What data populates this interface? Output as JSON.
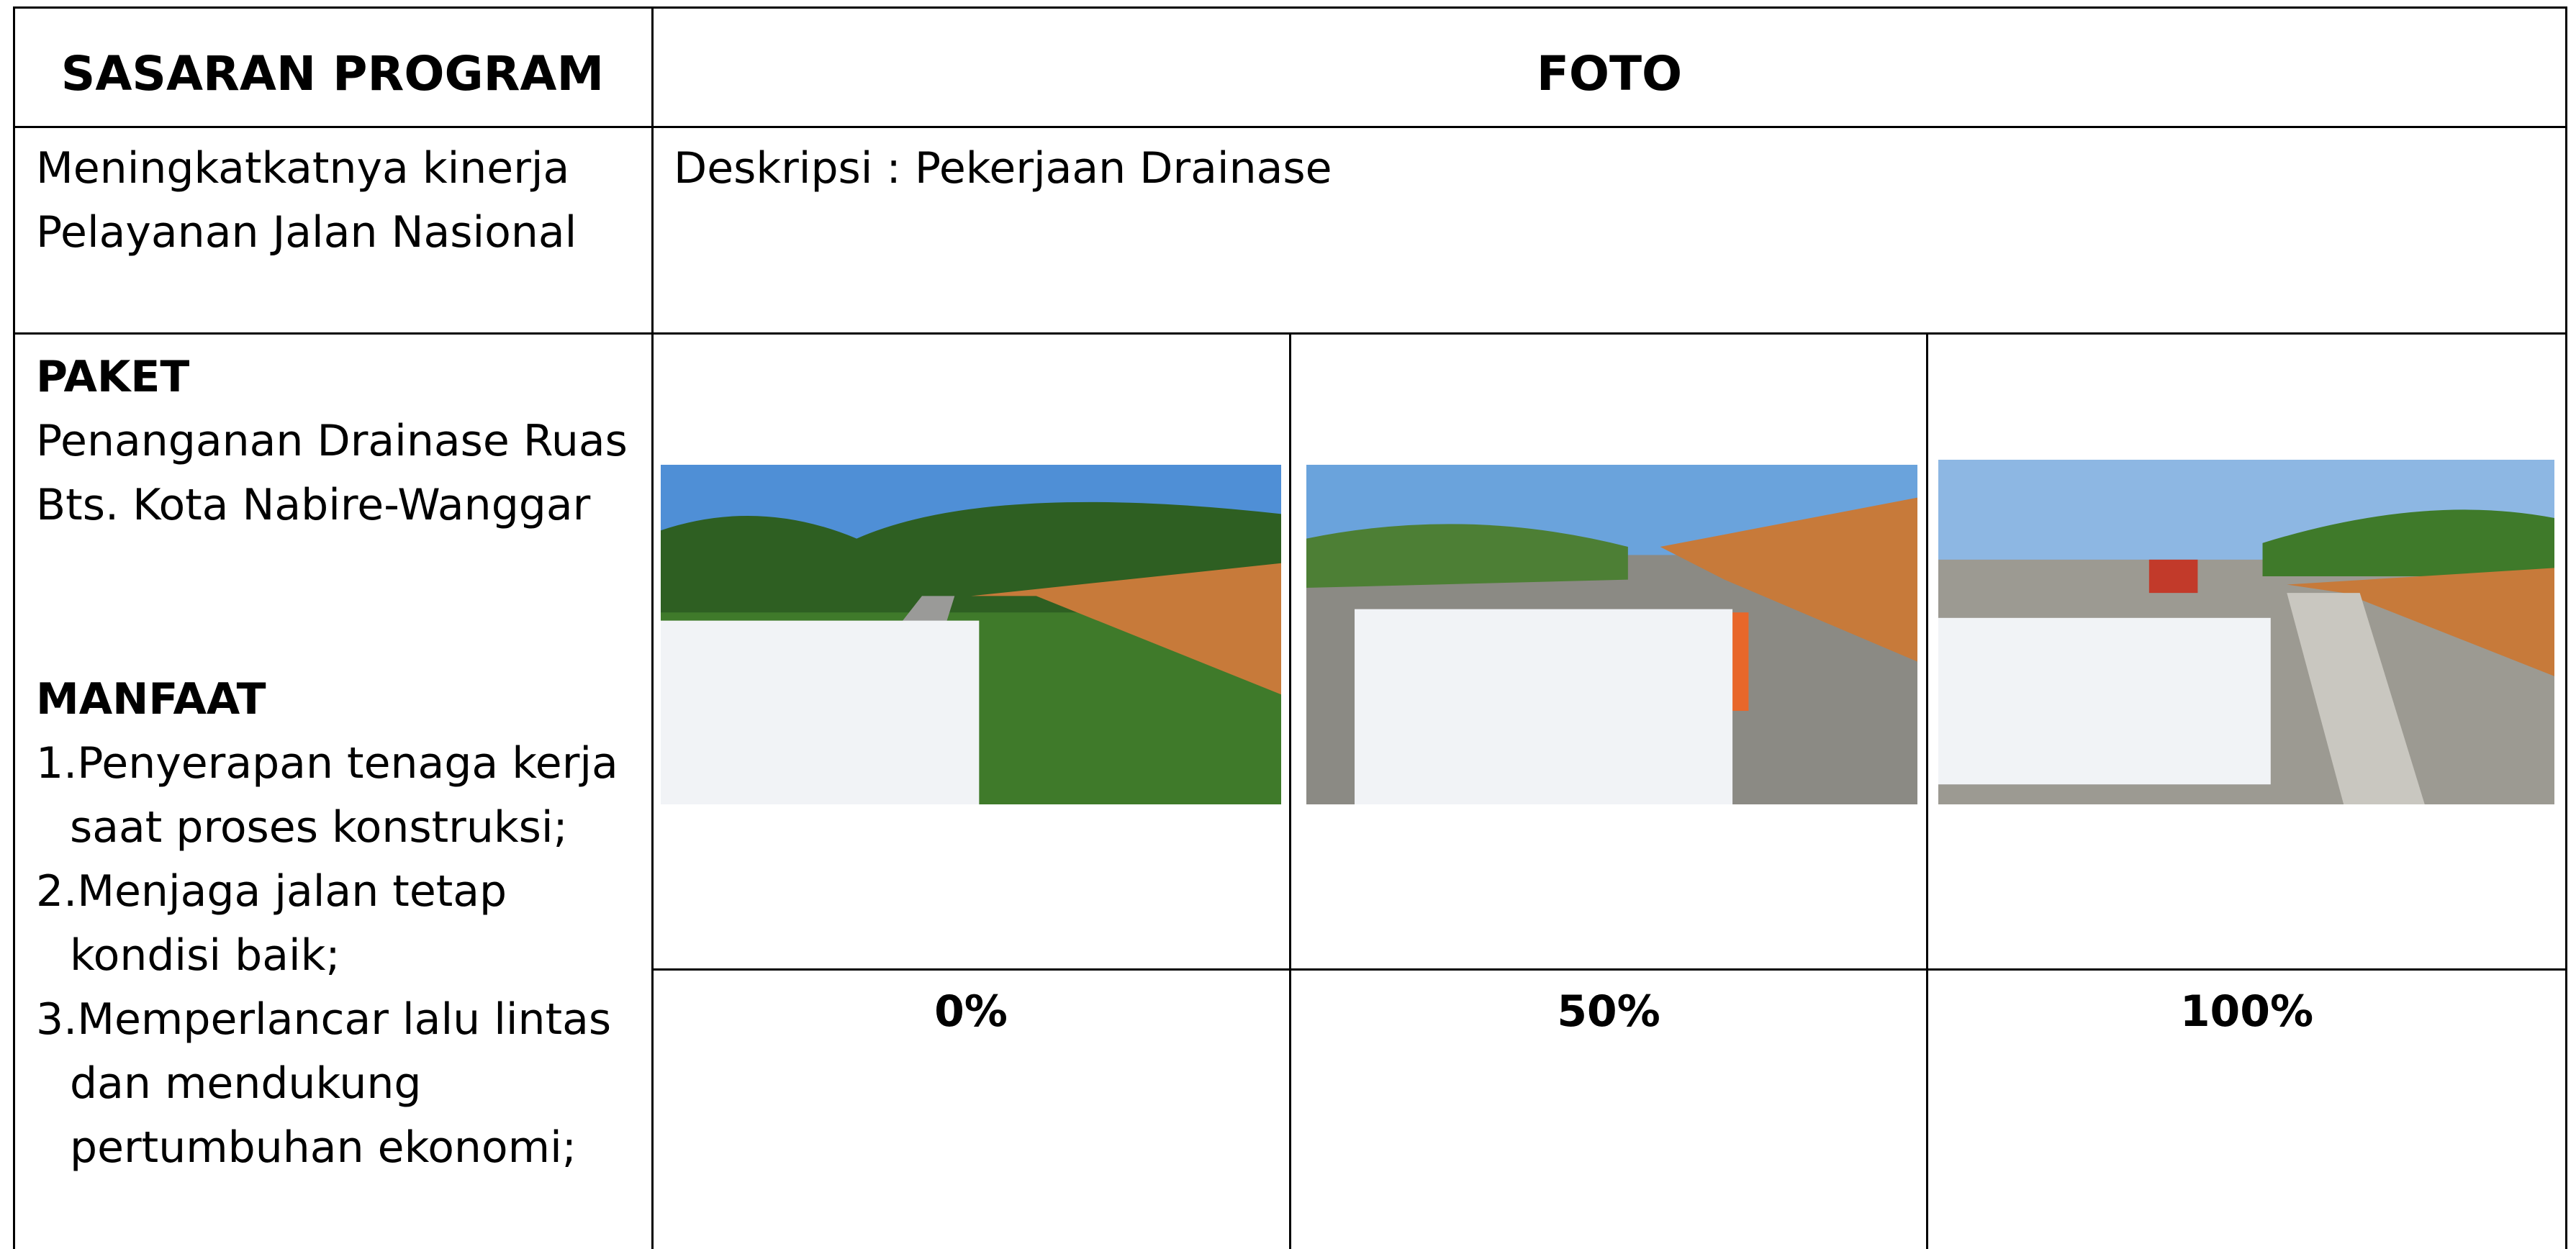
{
  "header": {
    "col1": "SASARAN PROGRAM",
    "col2": "FOTO"
  },
  "sasaran": {
    "lines": [
      "Meningkatkatnya kinerja",
      "Pelayanan Jalan Nasional"
    ]
  },
  "deskripsi": "Deskripsi : Pekerjaan Drainase",
  "paket": {
    "heading": "PAKET",
    "lines": [
      "Penanganan Drainase Ruas",
      "Bts. Kota Nabire-Wanggar"
    ]
  },
  "manfaat": {
    "heading": "MANFAAT",
    "items": [
      [
        "1.Penyerapan tenaga kerja",
        "saat proses konstruksi;"
      ],
      [
        "2.Menjaga jalan tetap",
        "kondisi baik;"
      ],
      [
        "3.Memperlancar lalu lintas",
        "dan mendukung",
        "pertumbuhan ekonomi;"
      ]
    ]
  },
  "photos": {
    "captions": [
      "0%",
      "50%",
      "100%"
    ]
  }
}
